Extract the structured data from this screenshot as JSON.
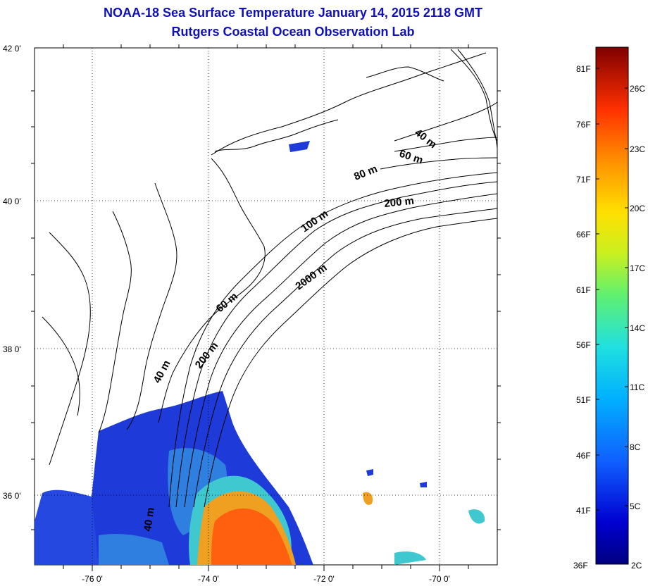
{
  "title": {
    "line1": "NOAA-18 Sea Surface Temperature January 14, 2015 2118 GMT",
    "line2": "Rutgers Coastal Ocean Observation Lab"
  },
  "map": {
    "lat_labels": [
      "42 0'",
      "40 0'",
      "38 0'",
      "36 0'"
    ],
    "lon_labels": [
      "-76 0'",
      "-74 0'",
      "-72 0'",
      "-70 0'"
    ],
    "contour_labels": [
      "40 m",
      "60 m",
      "80 m",
      "200 m",
      "100 m",
      "2000 m",
      "60 m",
      "200 m",
      "40 m",
      "40 m"
    ],
    "colors": {
      "cold": "#1e3ad8",
      "cool": "#2f7fe0",
      "mid": "#40c8d0",
      "warm": "#f0a020",
      "hot": "#ff6010",
      "land_outline": "#000000"
    }
  },
  "colorbar": {
    "fahrenheit_labels": [
      "81F",
      "76F",
      "71F",
      "66F",
      "61F",
      "56F",
      "51F",
      "46F",
      "41F",
      "36F"
    ],
    "celsius_labels": [
      "26C",
      "23C",
      "20C",
      "17C",
      "14C",
      "11C",
      "8C",
      "5C",
      "2C"
    ]
  }
}
